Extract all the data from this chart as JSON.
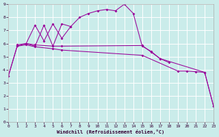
{
  "xlabel": "Windchill (Refroidissement éolien,°C)",
  "xlim": [
    0,
    23
  ],
  "ylim": [
    0,
    9
  ],
  "bg_color": "#caecea",
  "line_color": "#990099",
  "grid_color": "#b8e0dc",
  "tick_label_color": "#330033",
  "lines": [
    {
      "x": [
        0,
        1,
        2,
        3,
        4,
        5,
        6,
        7,
        8,
        9,
        10,
        11,
        12,
        13,
        14,
        15,
        16,
        17,
        22,
        23
      ],
      "y": [
        3.5,
        5.8,
        6.0,
        5.8,
        7.4,
        5.8,
        7.5,
        7.3,
        8.0,
        8.3,
        8.5,
        8.6,
        8.5,
        9.0,
        8.3,
        5.8,
        5.4,
        4.85,
        3.8,
        1.2
      ]
    },
    {
      "x": [
        2,
        3,
        4,
        5,
        6,
        7
      ],
      "y": [
        6.0,
        7.4,
        6.2,
        7.5,
        6.4,
        7.3
      ]
    },
    {
      "x": [
        1,
        2,
        3,
        5,
        6,
        15,
        16,
        17,
        18
      ],
      "y": [
        5.9,
        6.0,
        5.9,
        5.8,
        5.8,
        5.85,
        5.35,
        4.85,
        4.55
      ]
    },
    {
      "x": [
        0,
        1,
        2,
        3,
        5,
        6,
        15,
        19,
        20,
        21,
        22,
        23
      ],
      "y": [
        3.5,
        5.8,
        5.9,
        5.75,
        5.6,
        5.5,
        5.1,
        3.9,
        3.9,
        3.85,
        3.8,
        1.2
      ]
    }
  ]
}
